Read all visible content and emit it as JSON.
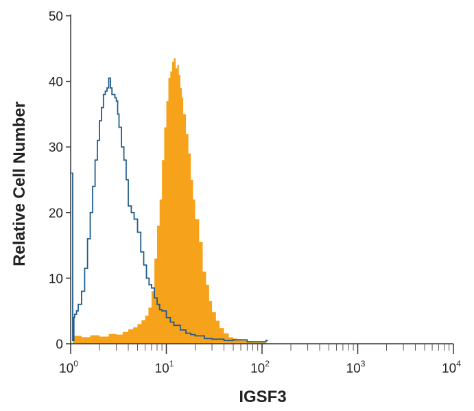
{
  "chart_data": {
    "type": "area",
    "title": "",
    "xlabel": "IGSF3",
    "ylabel": "Relative Cell Number",
    "x_scale": "log",
    "xlim": [
      1,
      10000
    ],
    "ylim": [
      0,
      50
    ],
    "x_ticks": [
      {
        "value": 1,
        "base": "10",
        "exp": "0"
      },
      {
        "value": 10,
        "base": "10",
        "exp": "1"
      },
      {
        "value": 100,
        "base": "10",
        "exp": "2"
      },
      {
        "value": 1000,
        "base": "10",
        "exp": "3"
      },
      {
        "value": 10000,
        "base": "10",
        "exp": "4"
      }
    ],
    "y_ticks": [
      "0",
      "10",
      "20",
      "30",
      "40",
      "50"
    ],
    "grid": false,
    "legend": "none",
    "series": [
      {
        "style": "filled",
        "color": "#F7A21B",
        "x": [
          1.05,
          1.3,
          1.6,
          2.0,
          2.5,
          3.0,
          3.5,
          4.0,
          4.5,
          5.0,
          5.5,
          6.0,
          6.5,
          7.0,
          7.5,
          8.0,
          8.5,
          9.0,
          9.5,
          10.0,
          10.5,
          11.0,
          11.5,
          12.0,
          12.5,
          13.0,
          13.5,
          14.0,
          14.5,
          15.0,
          16.0,
          17.0,
          18.0,
          19.0,
          20.0,
          22.0,
          24.0,
          26.0,
          28.0,
          30.0,
          33.0,
          36.0,
          40.0,
          45.0,
          50.0,
          55.0,
          60.0,
          70.0,
          80.0,
          90.0,
          100.0,
          110.0
        ],
        "y": [
          1.2,
          1.0,
          1.3,
          1.1,
          1.5,
          1.4,
          1.8,
          2.2,
          2.5,
          3.0,
          3.6,
          4.3,
          5.5,
          8.0,
          13.0,
          18.0,
          22.0,
          28.0,
          33.0,
          37.0,
          40.5,
          41.5,
          43.0,
          43.5,
          42.0,
          42.5,
          41.0,
          39.0,
          37.5,
          35.0,
          32.0,
          29.0,
          25.0,
          22.0,
          19.0,
          15.5,
          11.0,
          9.0,
          6.5,
          4.8,
          3.5,
          2.4,
          1.6,
          1.0,
          0.8,
          0.7,
          0.5,
          0.4,
          0.3,
          0.3,
          0.2,
          0.0
        ]
      },
      {
        "style": "line",
        "color": "#1F5C8B",
        "x": [
          1.02,
          1.03,
          1.05,
          1.08,
          1.1,
          1.15,
          1.2,
          1.3,
          1.4,
          1.5,
          1.6,
          1.7,
          1.8,
          1.9,
          2.0,
          2.1,
          2.2,
          2.3,
          2.4,
          2.5,
          2.6,
          2.7,
          2.8,
          2.9,
          3.0,
          3.1,
          3.2,
          3.4,
          3.6,
          3.8,
          4.0,
          4.3,
          4.6,
          5.0,
          5.4,
          5.8,
          6.2,
          6.6,
          7.0,
          7.5,
          8.0,
          8.5,
          9.0,
          10.0,
          11.0,
          12.0,
          14.0,
          16.0,
          18.0,
          20.0,
          25.0,
          30.0,
          40.0,
          50.0,
          70.0,
          90.0,
          110.0,
          115.0
        ],
        "y": [
          26.0,
          26.0,
          0.5,
          4.0,
          4.5,
          5.0,
          6.0,
          8.0,
          11.5,
          16.0,
          20.0,
          24.0,
          28.0,
          31.0,
          34.0,
          36.0,
          38.0,
          38.5,
          39.0,
          40.5,
          39.0,
          38.0,
          38.0,
          37.5,
          37.0,
          35.0,
          33.0,
          30.0,
          28.0,
          25.0,
          21.0,
          20.0,
          19.0,
          17.0,
          14.0,
          12.0,
          10.0,
          9.0,
          8.5,
          7.0,
          6.0,
          5.2,
          5.0,
          4.0,
          3.3,
          2.8,
          2.1,
          1.6,
          1.4,
          1.2,
          0.8,
          0.7,
          0.5,
          0.6,
          0.3,
          0.3,
          0.5,
          0.5
        ]
      }
    ]
  }
}
